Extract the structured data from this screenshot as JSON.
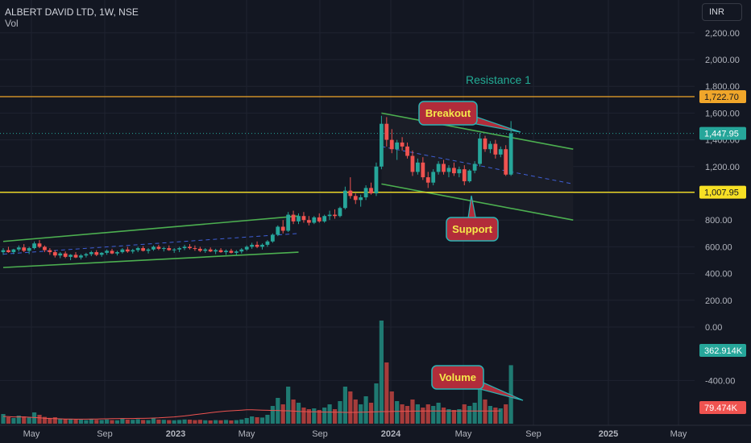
{
  "header": {
    "title": "ALBERT DAVID LTD, 1W, NSE",
    "vol_label": "Vol",
    "currency": "INR"
  },
  "colors": {
    "background": "#131722",
    "up": "#26a69a",
    "down": "#ef5350",
    "level_line": "#f7e024",
    "resistance_line": "#f0a62a",
    "channel": "#4caf50",
    "midline": "#3f5fd6",
    "annotation_fill": "#b22c3a",
    "annotation_border": "#2bb4b4",
    "annotation_text": "#f5e94a",
    "label_teal": "#22ab94"
  },
  "annotations": {
    "resistance": "Resistance 1",
    "breakout": "Breakout",
    "support": "Support",
    "volume": "Volume"
  },
  "chart_data": {
    "type": "candlestick",
    "symbol": "ALBERT DAVID LTD",
    "interval": "1W",
    "exchange": "NSE",
    "y_axis": {
      "ticks": [
        "2,200.00",
        "2,000.00",
        "1,800.00",
        "1,600.00",
        "1,400.00",
        "1,200.00",
        "1,000.00",
        "800.00",
        "600.00",
        "400.00",
        "200.00",
        "0.00",
        "-400.00"
      ],
      "range": [
        -500,
        2400
      ]
    },
    "x_axis": {
      "ticks": [
        "May",
        "Sep",
        "2023",
        "May",
        "Sep",
        "2024",
        "May",
        "Sep",
        "2025",
        "May"
      ]
    },
    "price_labels": {
      "resistance": "1,722.70",
      "last": "1,447.95",
      "support": "1,007.95",
      "volume_last": "362.914K",
      "volume_ma": "79.474K"
    },
    "levels": {
      "resistance": 1722.7,
      "support": 1007.95,
      "last_close": 1447.95
    },
    "candles": {
      "fields": [
        "open",
        "high",
        "low",
        "close",
        "volume_k"
      ],
      "data": [
        [
          560,
          590,
          540,
          575,
          60
        ],
        [
          575,
          600,
          555,
          560,
          40
        ],
        [
          560,
          585,
          545,
          580,
          35
        ],
        [
          580,
          610,
          565,
          595,
          50
        ],
        [
          595,
          620,
          560,
          570,
          45
        ],
        [
          570,
          600,
          545,
          590,
          38
        ],
        [
          590,
          640,
          580,
          625,
          70
        ],
        [
          625,
          650,
          590,
          600,
          55
        ],
        [
          600,
          610,
          560,
          575,
          42
        ],
        [
          575,
          590,
          540,
          560,
          36
        ],
        [
          560,
          575,
          520,
          535,
          40
        ],
        [
          535,
          560,
          515,
          550,
          32
        ],
        [
          550,
          565,
          515,
          525,
          30
        ],
        [
          525,
          545,
          500,
          540,
          28
        ],
        [
          540,
          560,
          515,
          520,
          26
        ],
        [
          520,
          545,
          505,
          535,
          25
        ],
        [
          535,
          555,
          520,
          545,
          22
        ],
        [
          545,
          570,
          530,
          560,
          27
        ],
        [
          560,
          575,
          530,
          540,
          24
        ],
        [
          540,
          560,
          525,
          555,
          23
        ],
        [
          555,
          580,
          540,
          570,
          26
        ],
        [
          570,
          585,
          545,
          550,
          22
        ],
        [
          550,
          570,
          535,
          560,
          21
        ],
        [
          560,
          590,
          550,
          580,
          30
        ],
        [
          580,
          600,
          555,
          565,
          25
        ],
        [
          565,
          585,
          550,
          575,
          24
        ],
        [
          575,
          600,
          560,
          590,
          28
        ],
        [
          590,
          605,
          565,
          570,
          23
        ],
        [
          570,
          590,
          550,
          580,
          22
        ],
        [
          580,
          610,
          570,
          600,
          33
        ],
        [
          600,
          615,
          575,
          585,
          25
        ],
        [
          585,
          600,
          565,
          590,
          24
        ],
        [
          590,
          610,
          570,
          575,
          22
        ],
        [
          575,
          590,
          555,
          580,
          21
        ],
        [
          580,
          600,
          560,
          590,
          23
        ],
        [
          590,
          615,
          575,
          600,
          26
        ],
        [
          600,
          620,
          580,
          590,
          25
        ],
        [
          590,
          610,
          570,
          585,
          22
        ],
        [
          585,
          600,
          560,
          570,
          24
        ],
        [
          570,
          590,
          555,
          580,
          21
        ],
        [
          580,
          595,
          560,
          565,
          20
        ],
        [
          565,
          585,
          545,
          575,
          22
        ],
        [
          575,
          590,
          555,
          560,
          21
        ],
        [
          560,
          580,
          540,
          570,
          23
        ],
        [
          570,
          585,
          550,
          555,
          20
        ],
        [
          555,
          575,
          535,
          565,
          22
        ],
        [
          565,
          590,
          550,
          580,
          26
        ],
        [
          580,
          610,
          570,
          600,
          35
        ],
        [
          600,
          630,
          585,
          615,
          45
        ],
        [
          615,
          640,
          590,
          600,
          40
        ],
        [
          600,
          625,
          580,
          615,
          38
        ],
        [
          615,
          650,
          600,
          640,
          55
        ],
        [
          640,
          700,
          630,
          690,
          110
        ],
        [
          690,
          760,
          680,
          750,
          160
        ],
        [
          750,
          800,
          700,
          720,
          120
        ],
        [
          720,
          860,
          710,
          840,
          230
        ],
        [
          840,
          870,
          770,
          790,
          150
        ],
        [
          790,
          850,
          770,
          830,
          130
        ],
        [
          830,
          860,
          780,
          800,
          100
        ],
        [
          800,
          830,
          760,
          780,
          90
        ],
        [
          780,
          830,
          770,
          820,
          95
        ],
        [
          820,
          850,
          780,
          790,
          85
        ],
        [
          790,
          840,
          780,
          830,
          100
        ],
        [
          830,
          870,
          800,
          840,
          120
        ],
        [
          840,
          880,
          810,
          830,
          90
        ],
        [
          830,
          900,
          820,
          890,
          140
        ],
        [
          890,
          1050,
          880,
          1020,
          230
        ],
        [
          1020,
          1120,
          960,
          980,
          200
        ],
        [
          980,
          1000,
          920,
          950,
          150
        ],
        [
          950,
          990,
          900,
          970,
          120
        ],
        [
          970,
          1060,
          950,
          1040,
          170
        ],
        [
          1040,
          1080,
          990,
          1000,
          130
        ],
        [
          1000,
          1230,
          980,
          1200,
          250
        ],
        [
          1200,
          1580,
          1180,
          1520,
          640
        ],
        [
          1520,
          1570,
          1350,
          1400,
          380
        ],
        [
          1400,
          1480,
          1300,
          1330,
          200
        ],
        [
          1330,
          1400,
          1250,
          1380,
          140
        ],
        [
          1380,
          1420,
          1320,
          1350,
          120
        ],
        [
          1350,
          1380,
          1260,
          1280,
          110
        ],
        [
          1280,
          1320,
          1130,
          1160,
          150
        ],
        [
          1160,
          1260,
          1140,
          1230,
          120
        ],
        [
          1230,
          1270,
          1100,
          1120,
          100
        ],
        [
          1120,
          1160,
          1040,
          1080,
          120
        ],
        [
          1080,
          1180,
          1060,
          1160,
          110
        ],
        [
          1160,
          1240,
          1140,
          1220,
          130
        ],
        [
          1220,
          1250,
          1140,
          1160,
          100
        ],
        [
          1160,
          1210,
          1120,
          1190,
          90
        ],
        [
          1190,
          1230,
          1130,
          1150,
          85
        ],
        [
          1150,
          1200,
          1120,
          1180,
          90
        ],
        [
          1180,
          1210,
          1060,
          1090,
          120
        ],
        [
          1090,
          1180,
          1080,
          1170,
          110
        ],
        [
          1170,
          1240,
          1150,
          1220,
          130
        ],
        [
          1220,
          1450,
          1200,
          1410,
          260
        ],
        [
          1410,
          1430,
          1310,
          1330,
          150
        ],
        [
          1330,
          1390,
          1300,
          1370,
          110
        ],
        [
          1370,
          1400,
          1260,
          1290,
          100
        ],
        [
          1290,
          1350,
          1270,
          1330,
          95
        ],
        [
          1330,
          1360,
          1130,
          1140,
          120
        ],
        [
          1140,
          1540,
          1130,
          1448,
          363
        ]
      ]
    },
    "volume_ma": [
      45,
      44,
      42,
      42,
      42,
      40,
      38,
      36,
      34,
      32,
      31,
      30,
      29,
      29,
      28,
      28,
      28,
      29,
      29,
      30,
      30,
      31,
      31,
      32,
      32,
      32,
      33,
      33,
      34,
      35,
      36,
      38,
      40,
      42,
      45,
      48,
      52,
      56,
      60,
      64,
      68,
      72,
      75,
      78,
      80,
      82,
      84,
      86,
      86,
      85,
      84,
      83,
      82,
      82,
      80,
      80,
      78,
      76,
      75,
      74,
      74,
      73,
      72,
      72,
      71,
      71,
      70,
      70,
      70,
      71,
      72,
      73,
      74,
      75,
      75,
      76,
      76,
      77,
      77,
      78,
      78,
      79,
      79,
      79,
      79,
      79,
      79,
      79,
      79,
      79,
      79,
      79,
      79,
      79,
      79,
      79,
      79.474
    ],
    "channels": [
      {
        "name": "lower_channel_upper",
        "from": {
          "bar": 0,
          "price": 640
        },
        "to": {
          "bar": 57,
          "price": 830
        }
      },
      {
        "name": "lower_channel_mid",
        "from": {
          "bar": 0,
          "price": 545
        },
        "to": {
          "bar": 57,
          "price": 700
        }
      },
      {
        "name": "lower_channel_lower",
        "from": {
          "bar": 0,
          "price": 445
        },
        "to": {
          "bar": 57,
          "price": 560
        }
      },
      {
        "name": "upper_channel_upper",
        "from": {
          "bar": 73,
          "price": 1600
        },
        "to": {
          "bar": 110,
          "price": 1330
        }
      },
      {
        "name": "upper_channel_mid",
        "from": {
          "bar": 73,
          "price": 1350
        },
        "to": {
          "bar": 110,
          "price": 1070
        }
      },
      {
        "name": "upper_channel_lower",
        "from": {
          "bar": 73,
          "price": 1070
        },
        "to": {
          "bar": 110,
          "price": 800
        }
      }
    ]
  }
}
